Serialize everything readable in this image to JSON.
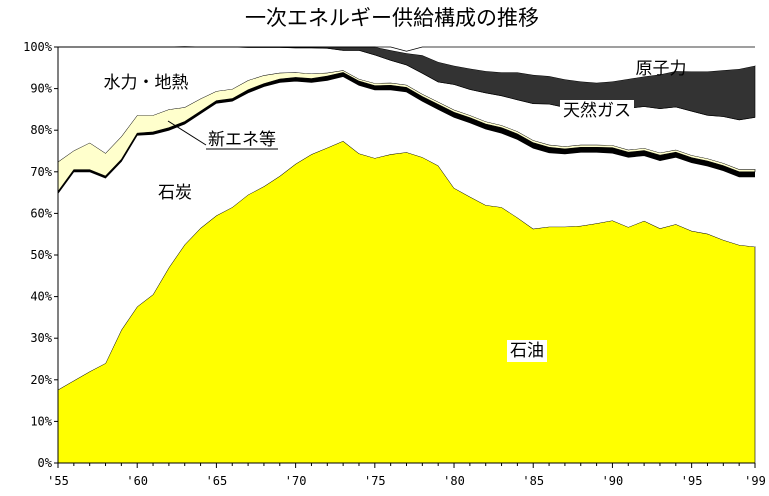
{
  "chart_data": {
    "type": "area",
    "stacked": true,
    "title": "一次エネルギー供給構成の推移",
    "xlabel": "",
    "ylabel": "",
    "xlim": [
      1955,
      1999
    ],
    "ylim": [
      0,
      100
    ],
    "yticks": [
      "0%",
      "10%",
      "20%",
      "30%",
      "40%",
      "50%",
      "60%",
      "70%",
      "80%",
      "90%",
      "100%"
    ],
    "ytick_values": [
      0,
      10,
      20,
      30,
      40,
      50,
      60,
      70,
      80,
      90,
      100
    ],
    "xticks": [
      "'55",
      "'60",
      "'65",
      "'70",
      "'75",
      "'80",
      "'85",
      "'90",
      "'95",
      "'99"
    ],
    "xtick_values": [
      1955,
      1960,
      1965,
      1970,
      1975,
      1980,
      1985,
      1990,
      1995,
      1999
    ],
    "grid": false,
    "x": [
      1955,
      1956,
      1957,
      1958,
      1959,
      1960,
      1961,
      1962,
      1963,
      1964,
      1965,
      1966,
      1967,
      1968,
      1969,
      1970,
      1971,
      1972,
      1973,
      1974,
      1975,
      1976,
      1977,
      1978,
      1979,
      1980,
      1981,
      1982,
      1983,
      1984,
      1985,
      1986,
      1987,
      1988,
      1989,
      1990,
      1991,
      1992,
      1993,
      1994,
      1995,
      1996,
      1997,
      1998,
      1999
    ],
    "series": [
      {
        "name": "石油",
        "color": "#ffff00",
        "values": [
          17.6,
          19.8,
          22.0,
          24.0,
          32.0,
          37.6,
          40.5,
          47.0,
          52.5,
          56.5,
          59.5,
          61.5,
          64.5,
          66.5,
          69.0,
          71.9,
          74.2,
          75.8,
          77.4,
          74.4,
          73.3,
          74.2,
          74.7,
          73.5,
          71.5,
          66.1,
          64.0,
          62.0,
          61.5,
          59.0,
          56.3,
          56.8,
          56.8,
          57.0,
          57.6,
          58.3,
          56.7,
          58.2,
          56.4,
          57.4,
          55.8,
          55.1,
          53.6,
          52.4,
          52.0
        ]
      },
      {
        "name": "石炭",
        "color": "#ffffff",
        "values": [
          47.2,
          50.2,
          48.0,
          44.5,
          40.5,
          41.2,
          38.5,
          33.0,
          29.0,
          27.5,
          27.0,
          25.5,
          24.5,
          24.0,
          22.5,
          19.9,
          17.3,
          16.2,
          15.5,
          16.4,
          16.4,
          15.5,
          14.5,
          13.5,
          13.5,
          17.0,
          17.8,
          18.3,
          17.8,
          18.8,
          19.4,
          17.8,
          17.5,
          17.7,
          17.1,
          16.2,
          16.8,
          15.7,
          16.3,
          16.1,
          16.4,
          16.3,
          16.7,
          16.4,
          16.8
        ]
      },
      {
        "name": "新エネ等",
        "color": "#000000",
        "values": [
          0.5,
          0.5,
          0.5,
          0.5,
          0.5,
          0.5,
          0.6,
          0.6,
          0.6,
          0.6,
          0.6,
          0.6,
          0.7,
          0.7,
          0.8,
          0.9,
          0.9,
          1.0,
          1.0,
          1.0,
          1.0,
          1.1,
          1.1,
          1.1,
          1.2,
          1.2,
          1.2,
          1.2,
          1.3,
          1.3,
          1.3,
          1.3,
          1.2,
          1.2,
          1.2,
          1.3,
          1.2,
          1.2,
          1.3,
          1.2,
          1.2,
          1.2,
          1.2,
          1.2,
          1.2
        ]
      },
      {
        "name": "水力・地熱",
        "color": "#ffffcc",
        "values": [
          7.1,
          4.6,
          6.5,
          5.5,
          5.5,
          4.3,
          4.0,
          4.4,
          3.4,
          3.0,
          2.3,
          2.3,
          2.3,
          2.0,
          1.5,
          1.2,
          1.2,
          0.8,
          0.5,
          0.5,
          0.6,
          0.6,
          0.6,
          0.6,
          0.6,
          0.6,
          0.6,
          0.6,
          0.6,
          0.6,
          0.6,
          0.6,
          0.6,
          0.6,
          0.6,
          0.6,
          0.6,
          0.6,
          0.6,
          0.6,
          0.6,
          0.6,
          0.6,
          0.6,
          0.6
        ]
      },
      {
        "name": "",
        "color": "#ffffff",
        "values": [
          27.6,
          24.9,
          23.0,
          25.5,
          21.5,
          16.4,
          16.4,
          15.0,
          14.5,
          12.4,
          10.6,
          10.1,
          7.9,
          6.7,
          6.1,
          5.9,
          6.2,
          5.9,
          4.8,
          6.9,
          6.8,
          5.4,
          4.8,
          5.0,
          4.8,
          6.1,
          6.2,
          6.9,
          7.1,
          7.6,
          8.8,
          9.8,
          9.4,
          8.4,
          8.7,
          8.9,
          10.0,
          10.0,
          10.6,
          10.3,
          10.6,
          10.4,
          11.2,
          11.9,
          12.5
        ]
      },
      {
        "name": "天然ガス",
        "color": "#333333",
        "values": [
          0.0,
          0.0,
          0.0,
          0.0,
          0.0,
          0.0,
          0.0,
          0.0,
          0.0,
          0.0,
          0.0,
          0.0,
          0.1,
          0.1,
          0.1,
          0.2,
          0.2,
          0.3,
          0.8,
          0.8,
          1.9,
          2.4,
          2.8,
          4.3,
          4.8,
          4.5,
          5.0,
          5.2,
          5.6,
          6.6,
          6.9,
          6.7,
          6.7,
          6.8,
          6.2,
          6.4,
          7.0,
          7.2,
          8.2,
          8.6,
          9.5,
          10.5,
          11.1,
          12.2,
          12.4
        ]
      },
      {
        "name": "原子力",
        "color": "#ffffff",
        "values": [
          0.0,
          0.0,
          0.0,
          0.0,
          0.0,
          0.0,
          0.0,
          0.0,
          0.1,
          0.0,
          0.0,
          0.0,
          0.0,
          0.0,
          0.0,
          0.0,
          0.0,
          0.0,
          0.0,
          0.0,
          0.0,
          0.8,
          0.5,
          2.0,
          3.6,
          4.5,
          5.2,
          5.8,
          6.1,
          6.1,
          6.7,
          7.0,
          7.8,
          8.3,
          8.6,
          8.3,
          7.7,
          7.1,
          6.6,
          5.8,
          5.9,
          5.9,
          5.6,
          5.3,
          4.5
        ]
      }
    ]
  }
}
